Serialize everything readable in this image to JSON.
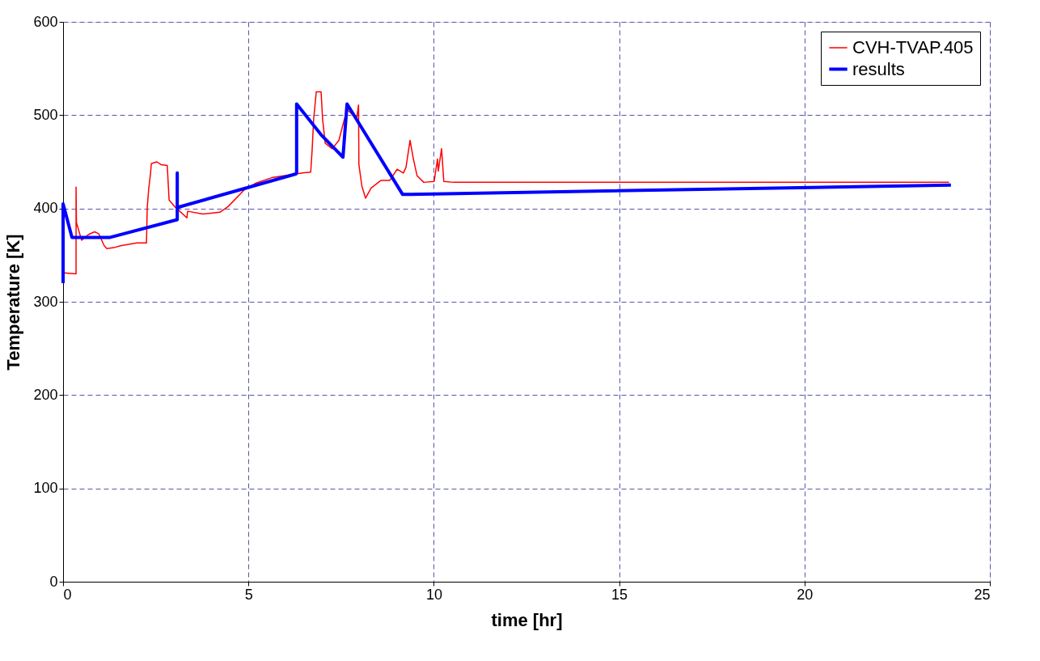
{
  "chart_data": {
    "type": "line",
    "xlabel": "time [hr]",
    "ylabel": "Temperature [K]",
    "xlim": [
      0,
      25
    ],
    "xticks": [
      0,
      5,
      10,
      15,
      20,
      25
    ],
    "ylim": [
      0,
      600
    ],
    "yticks": [
      0,
      100,
      200,
      300,
      400,
      500,
      600
    ],
    "grid": true,
    "legend": "top right",
    "marker": "none",
    "line_style": "solid",
    "series": [
      {
        "name": "CVH-TVAP.405",
        "color": "#ff0000",
        "x": [
          0.02,
          0.35,
          0.35,
          0.36,
          0.5,
          0.68,
          0.85,
          0.96,
          1.11,
          1.18,
          1.37,
          1.55,
          1.99,
          2.25,
          2.27,
          2.31,
          2.36,
          2.38,
          2.53,
          2.64,
          2.81,
          2.86,
          3.01,
          3.34,
          3.36,
          3.77,
          4.23,
          4.45,
          4.89,
          5.19,
          5.63,
          6.28,
          6.46,
          6.68,
          6.72,
          6.76,
          6.83,
          6.96,
          7.0,
          7.07,
          7.26,
          7.44,
          7.55,
          7.66,
          7.77,
          7.92,
          7.97,
          7.98,
          8.06,
          8.16,
          8.31,
          8.57,
          8.81,
          9.01,
          9.18,
          9.25,
          9.36,
          9.45,
          9.55,
          9.73,
          10.01,
          10.1,
          10.12,
          10.21,
          10.27,
          10.54,
          23.9
        ],
        "values": [
          331,
          330,
          423,
          385,
          366,
          372,
          375,
          373,
          360,
          357,
          358,
          360,
          363,
          363,
          401,
          421,
          438,
          448,
          450,
          447,
          446,
          409,
          402,
          390,
          397,
          394,
          396,
          402,
          420,
          427,
          433,
          437,
          438,
          439,
          464,
          496,
          525,
          525,
          496,
          470,
          464,
          473,
          490,
          506,
          502,
          496,
          511,
          447,
          424,
          411,
          422,
          430,
          430,
          442,
          438,
          444,
          473,
          453,
          435,
          428,
          429,
          453,
          440,
          464,
          429,
          428,
          428
        ]
      },
      {
        "name": "results",
        "color": "#0000ff",
        "x": [
          0,
          0,
          0.24,
          1.27,
          3.08,
          3.08,
          3.08,
          6.28,
          6.3,
          6.3,
          6.96,
          7.55,
          7.66,
          9.16,
          23.95
        ],
        "values": [
          320,
          405,
          369,
          369,
          388,
          438,
          401,
          437,
          438,
          512,
          479,
          455,
          512,
          415,
          425
        ]
      }
    ]
  }
}
